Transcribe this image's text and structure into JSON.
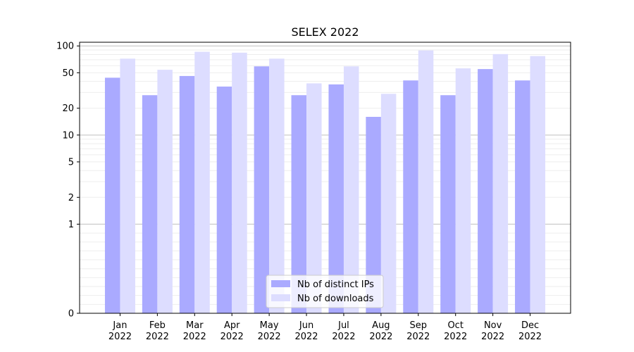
{
  "chart_data": {
    "type": "bar",
    "title": "SELEX 2022",
    "xlabel": "",
    "ylabel": "",
    "y_scale": "symlog",
    "ylim": [
      0,
      110
    ],
    "y_ticks": [
      0,
      1,
      2,
      5,
      10,
      20,
      50,
      100
    ],
    "y_tick_labels": [
      "0",
      "1",
      "2",
      "5",
      "10",
      "20",
      "50",
      "100"
    ],
    "grid": true,
    "legend_position": "bottom-center",
    "categories": [
      [
        "Jan",
        "2022"
      ],
      [
        "Feb",
        "2022"
      ],
      [
        "Mar",
        "2022"
      ],
      [
        "Apr",
        "2022"
      ],
      [
        "May",
        "2022"
      ],
      [
        "Jun",
        "2022"
      ],
      [
        "Jul",
        "2022"
      ],
      [
        "Aug",
        "2022"
      ],
      [
        "Sep",
        "2022"
      ],
      [
        "Oct",
        "2022"
      ],
      [
        "Nov",
        "2022"
      ],
      [
        "Dec",
        "2022"
      ]
    ],
    "series": [
      {
        "name": "Nb of distinct IPs",
        "color": "#aaaaff",
        "values": [
          44,
          28,
          46,
          35,
          59,
          28,
          37,
          16,
          41,
          28,
          55,
          41
        ]
      },
      {
        "name": "Nb of downloads",
        "color": "#ddddff",
        "values": [
          72,
          54,
          86,
          84,
          72,
          38,
          59,
          29,
          89,
          56,
          81,
          77
        ]
      }
    ]
  }
}
